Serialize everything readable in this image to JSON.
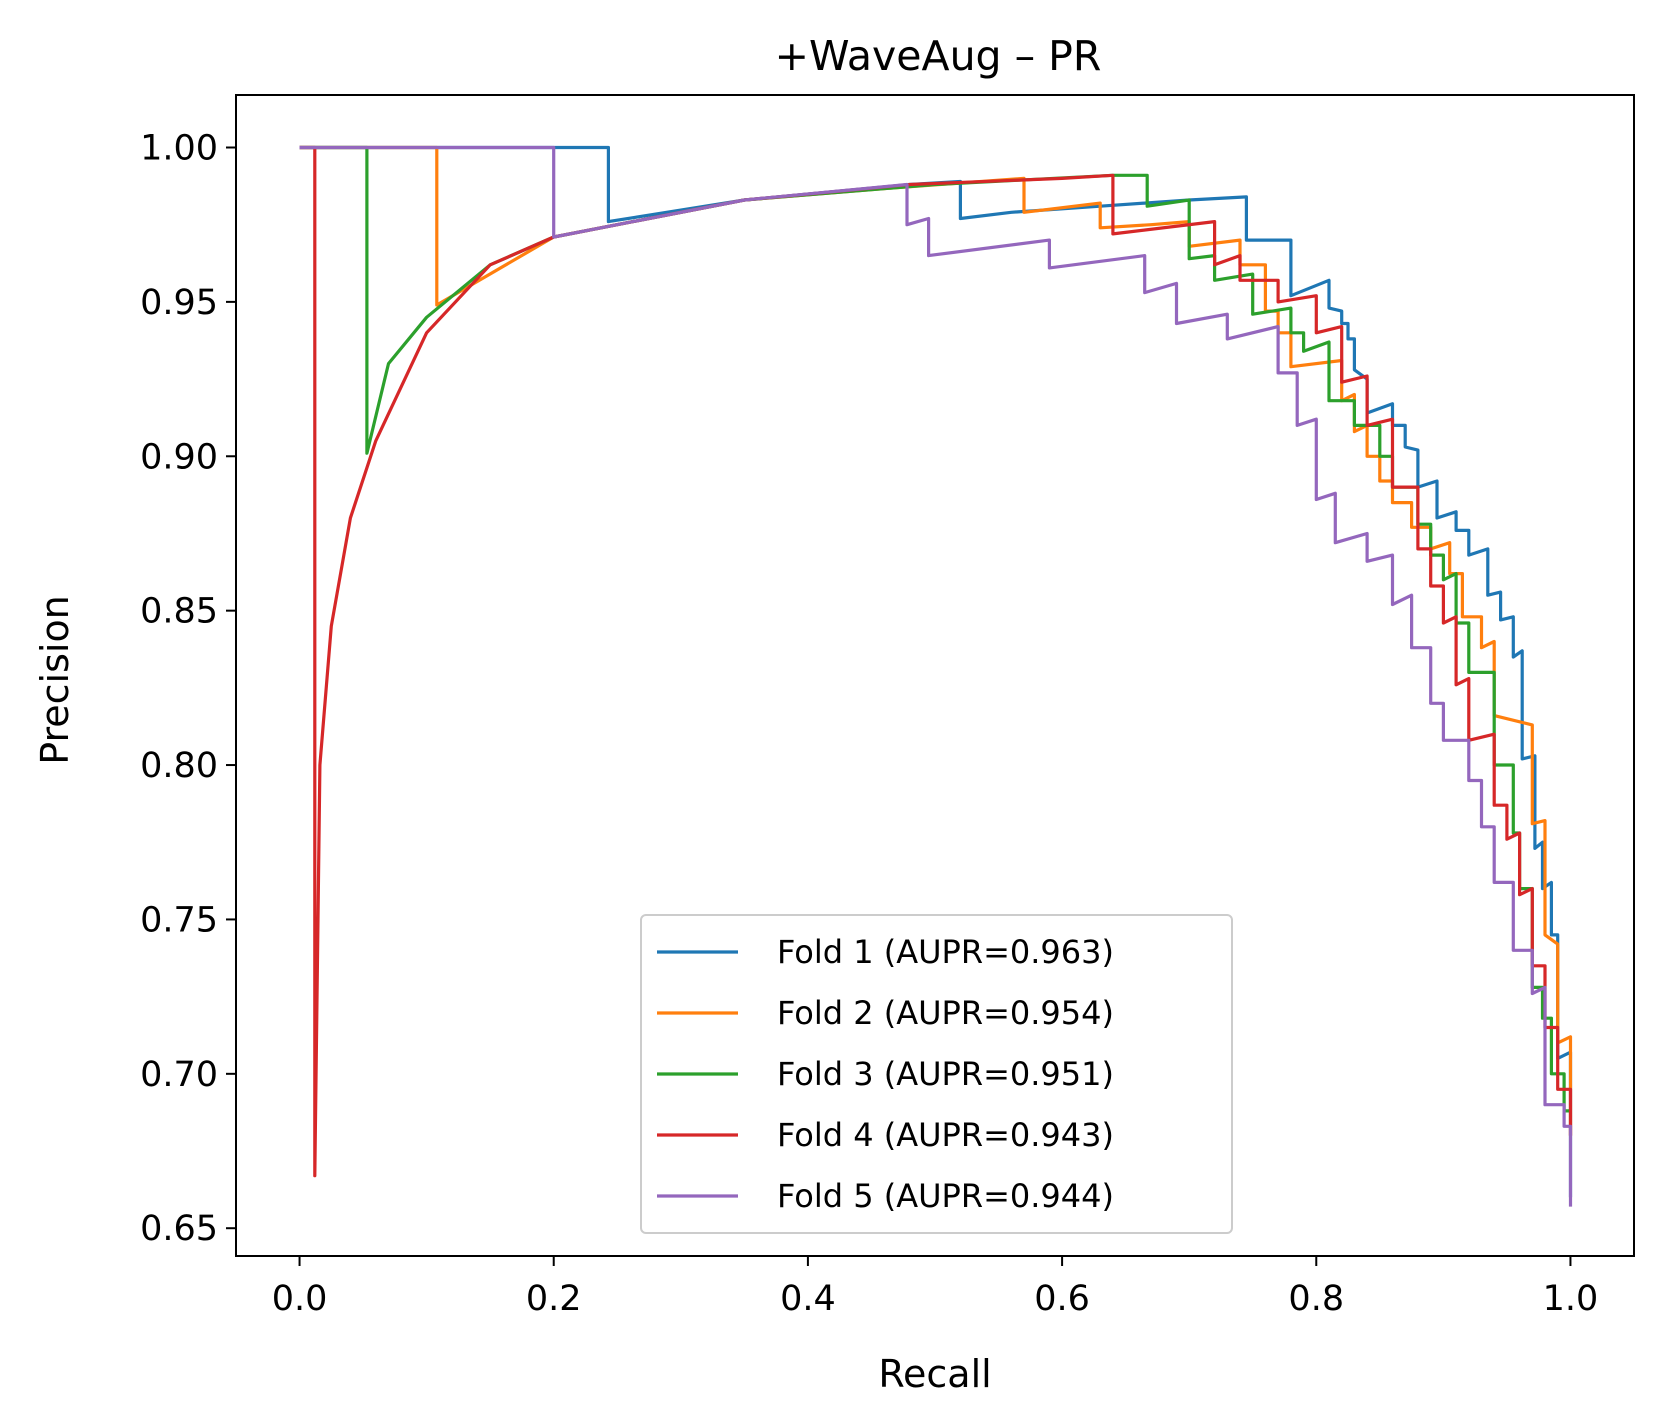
{
  "chart_data": {
    "type": "line",
    "title": "+WaveAug – PR",
    "xlabel": "Recall",
    "ylabel": "Precision",
    "xlim": [
      -0.05,
      1.05
    ],
    "ylim": [
      0.641,
      1.017
    ],
    "xticks": [
      0.0,
      0.2,
      0.4,
      0.6,
      0.8,
      1.0
    ],
    "xtick_labels": [
      "0.0",
      "0.2",
      "0.4",
      "0.6",
      "0.8",
      "1.0"
    ],
    "yticks": [
      0.65,
      0.7,
      0.75,
      0.8,
      0.85,
      0.9,
      0.95,
      1.0
    ],
    "ytick_labels": [
      "0.65",
      "0.70",
      "0.75",
      "0.80",
      "0.85",
      "0.90",
      "0.95",
      "1.00"
    ],
    "grid": false,
    "legend_position": "lower-center",
    "series": [
      {
        "name": "Fold 1 (AUPR=0.963)",
        "color": "#1f77b4",
        "points": [
          [
            0.0,
            1.0
          ],
          [
            0.243,
            1.0
          ],
          [
            0.243,
            0.976
          ],
          [
            0.35,
            0.983
          ],
          [
            0.48,
            0.988
          ],
          [
            0.52,
            0.989
          ],
          [
            0.52,
            0.977
          ],
          [
            0.56,
            0.979
          ],
          [
            0.63,
            0.981
          ],
          [
            0.7,
            0.983
          ],
          [
            0.745,
            0.984
          ],
          [
            0.745,
            0.97
          ],
          [
            0.78,
            0.97
          ],
          [
            0.78,
            0.952
          ],
          [
            0.81,
            0.957
          ],
          [
            0.81,
            0.948
          ],
          [
            0.82,
            0.947
          ],
          [
            0.82,
            0.943
          ],
          [
            0.825,
            0.943
          ],
          [
            0.825,
            0.938
          ],
          [
            0.83,
            0.938
          ],
          [
            0.83,
            0.928
          ],
          [
            0.84,
            0.925
          ],
          [
            0.84,
            0.914
          ],
          [
            0.86,
            0.917
          ],
          [
            0.86,
            0.91
          ],
          [
            0.87,
            0.91
          ],
          [
            0.87,
            0.903
          ],
          [
            0.88,
            0.902
          ],
          [
            0.88,
            0.89
          ],
          [
            0.895,
            0.892
          ],
          [
            0.895,
            0.88
          ],
          [
            0.91,
            0.882
          ],
          [
            0.91,
            0.876
          ],
          [
            0.92,
            0.876
          ],
          [
            0.92,
            0.868
          ],
          [
            0.935,
            0.87
          ],
          [
            0.935,
            0.855
          ],
          [
            0.945,
            0.856
          ],
          [
            0.945,
            0.847
          ],
          [
            0.955,
            0.848
          ],
          [
            0.955,
            0.835
          ],
          [
            0.962,
            0.837
          ],
          [
            0.962,
            0.802
          ],
          [
            0.972,
            0.803
          ],
          [
            0.972,
            0.773
          ],
          [
            0.978,
            0.775
          ],
          [
            0.978,
            0.76
          ],
          [
            0.985,
            0.762
          ],
          [
            0.985,
            0.745
          ],
          [
            0.99,
            0.745
          ],
          [
            0.99,
            0.705
          ],
          [
            1.0,
            0.707
          ],
          [
            1.0,
            0.66
          ]
        ]
      },
      {
        "name": "Fold 2 (AUPR=0.954)",
        "color": "#ff7f0e",
        "points": [
          [
            0.0,
            1.0
          ],
          [
            0.108,
            1.0
          ],
          [
            0.108,
            0.949
          ],
          [
            0.2,
            0.971
          ],
          [
            0.35,
            0.983
          ],
          [
            0.47,
            0.987
          ],
          [
            0.57,
            0.99
          ],
          [
            0.57,
            0.979
          ],
          [
            0.63,
            0.982
          ],
          [
            0.63,
            0.974
          ],
          [
            0.67,
            0.975
          ],
          [
            0.7,
            0.976
          ],
          [
            0.7,
            0.968
          ],
          [
            0.74,
            0.97
          ],
          [
            0.74,
            0.962
          ],
          [
            0.76,
            0.962
          ],
          [
            0.76,
            0.947
          ],
          [
            0.77,
            0.947
          ],
          [
            0.77,
            0.94
          ],
          [
            0.78,
            0.94
          ],
          [
            0.78,
            0.929
          ],
          [
            0.82,
            0.931
          ],
          [
            0.82,
            0.918
          ],
          [
            0.83,
            0.92
          ],
          [
            0.83,
            0.908
          ],
          [
            0.84,
            0.91
          ],
          [
            0.84,
            0.9
          ],
          [
            0.85,
            0.9
          ],
          [
            0.85,
            0.892
          ],
          [
            0.86,
            0.892
          ],
          [
            0.86,
            0.885
          ],
          [
            0.875,
            0.885
          ],
          [
            0.875,
            0.877
          ],
          [
            0.89,
            0.877
          ],
          [
            0.89,
            0.87
          ],
          [
            0.905,
            0.872
          ],
          [
            0.905,
            0.862
          ],
          [
            0.915,
            0.862
          ],
          [
            0.915,
            0.848
          ],
          [
            0.93,
            0.848
          ],
          [
            0.93,
            0.838
          ],
          [
            0.94,
            0.84
          ],
          [
            0.94,
            0.816
          ],
          [
            0.97,
            0.813
          ],
          [
            0.97,
            0.781
          ],
          [
            0.98,
            0.782
          ],
          [
            0.98,
            0.745
          ],
          [
            0.99,
            0.742
          ],
          [
            0.99,
            0.71
          ],
          [
            1.0,
            0.712
          ],
          [
            1.0,
            0.68
          ]
        ]
      },
      {
        "name": "Fold 3 (AUPR=0.951)",
        "color": "#2ca02c",
        "points": [
          [
            0.0,
            1.0
          ],
          [
            0.053,
            1.0
          ],
          [
            0.053,
            0.901
          ],
          [
            0.07,
            0.93
          ],
          [
            0.1,
            0.945
          ],
          [
            0.15,
            0.962
          ],
          [
            0.2,
            0.971
          ],
          [
            0.35,
            0.983
          ],
          [
            0.5,
            0.988
          ],
          [
            0.64,
            0.991
          ],
          [
            0.667,
            0.991
          ],
          [
            0.667,
            0.981
          ],
          [
            0.7,
            0.983
          ],
          [
            0.7,
            0.964
          ],
          [
            0.72,
            0.965
          ],
          [
            0.72,
            0.957
          ],
          [
            0.75,
            0.959
          ],
          [
            0.75,
            0.946
          ],
          [
            0.78,
            0.948
          ],
          [
            0.78,
            0.94
          ],
          [
            0.79,
            0.94
          ],
          [
            0.79,
            0.934
          ],
          [
            0.81,
            0.937
          ],
          [
            0.81,
            0.918
          ],
          [
            0.83,
            0.918
          ],
          [
            0.83,
            0.91
          ],
          [
            0.85,
            0.91
          ],
          [
            0.85,
            0.9
          ],
          [
            0.86,
            0.9
          ],
          [
            0.86,
            0.89
          ],
          [
            0.88,
            0.89
          ],
          [
            0.88,
            0.878
          ],
          [
            0.89,
            0.878
          ],
          [
            0.89,
            0.868
          ],
          [
            0.9,
            0.868
          ],
          [
            0.9,
            0.86
          ],
          [
            0.91,
            0.862
          ],
          [
            0.91,
            0.846
          ],
          [
            0.92,
            0.846
          ],
          [
            0.92,
            0.83
          ],
          [
            0.94,
            0.83
          ],
          [
            0.94,
            0.8
          ],
          [
            0.955,
            0.8
          ],
          [
            0.955,
            0.778
          ],
          [
            0.96,
            0.778
          ],
          [
            0.96,
            0.76
          ],
          [
            0.97,
            0.76
          ],
          [
            0.97,
            0.728
          ],
          [
            0.978,
            0.728
          ],
          [
            0.978,
            0.718
          ],
          [
            0.985,
            0.718
          ],
          [
            0.985,
            0.7
          ],
          [
            0.995,
            0.7
          ],
          [
            0.995,
            0.688
          ],
          [
            1.0,
            0.688
          ]
        ]
      },
      {
        "name": "Fold 4 (AUPR=0.943)",
        "color": "#d62728",
        "points": [
          [
            0.0,
            1.0
          ],
          [
            0.012,
            1.0
          ],
          [
            0.012,
            0.667
          ],
          [
            0.016,
            0.8
          ],
          [
            0.025,
            0.845
          ],
          [
            0.04,
            0.88
          ],
          [
            0.06,
            0.905
          ],
          [
            0.1,
            0.94
          ],
          [
            0.15,
            0.962
          ],
          [
            0.2,
            0.971
          ],
          [
            0.35,
            0.983
          ],
          [
            0.48,
            0.988
          ],
          [
            0.6,
            0.99
          ],
          [
            0.64,
            0.991
          ],
          [
            0.64,
            0.972
          ],
          [
            0.72,
            0.976
          ],
          [
            0.72,
            0.962
          ],
          [
            0.74,
            0.965
          ],
          [
            0.74,
            0.957
          ],
          [
            0.77,
            0.957
          ],
          [
            0.77,
            0.95
          ],
          [
            0.8,
            0.952
          ],
          [
            0.8,
            0.94
          ],
          [
            0.82,
            0.942
          ],
          [
            0.82,
            0.924
          ],
          [
            0.84,
            0.926
          ],
          [
            0.84,
            0.91
          ],
          [
            0.86,
            0.912
          ],
          [
            0.86,
            0.89
          ],
          [
            0.88,
            0.89
          ],
          [
            0.88,
            0.87
          ],
          [
            0.89,
            0.87
          ],
          [
            0.89,
            0.858
          ],
          [
            0.9,
            0.858
          ],
          [
            0.9,
            0.846
          ],
          [
            0.91,
            0.848
          ],
          [
            0.91,
            0.826
          ],
          [
            0.92,
            0.828
          ],
          [
            0.92,
            0.808
          ],
          [
            0.94,
            0.81
          ],
          [
            0.94,
            0.787
          ],
          [
            0.95,
            0.787
          ],
          [
            0.95,
            0.776
          ],
          [
            0.96,
            0.778
          ],
          [
            0.96,
            0.758
          ],
          [
            0.97,
            0.76
          ],
          [
            0.97,
            0.735
          ],
          [
            0.98,
            0.735
          ],
          [
            0.98,
            0.715
          ],
          [
            0.99,
            0.715
          ],
          [
            0.99,
            0.695
          ],
          [
            1.0,
            0.695
          ],
          [
            1.0,
            0.68
          ]
        ]
      },
      {
        "name": "Fold 5 (AUPR=0.944)",
        "color": "#9467bd",
        "points": [
          [
            0.0,
            1.0
          ],
          [
            0.2,
            1.0
          ],
          [
            0.2,
            0.971
          ],
          [
            0.35,
            0.983
          ],
          [
            0.478,
            0.988
          ],
          [
            0.478,
            0.975
          ],
          [
            0.495,
            0.977
          ],
          [
            0.495,
            0.965
          ],
          [
            0.59,
            0.97
          ],
          [
            0.59,
            0.961
          ],
          [
            0.665,
            0.965
          ],
          [
            0.665,
            0.953
          ],
          [
            0.69,
            0.956
          ],
          [
            0.69,
            0.943
          ],
          [
            0.73,
            0.946
          ],
          [
            0.73,
            0.938
          ],
          [
            0.77,
            0.942
          ],
          [
            0.77,
            0.927
          ],
          [
            0.785,
            0.927
          ],
          [
            0.785,
            0.91
          ],
          [
            0.8,
            0.912
          ],
          [
            0.8,
            0.886
          ],
          [
            0.815,
            0.888
          ],
          [
            0.815,
            0.872
          ],
          [
            0.84,
            0.875
          ],
          [
            0.84,
            0.866
          ],
          [
            0.86,
            0.868
          ],
          [
            0.86,
            0.852
          ],
          [
            0.875,
            0.855
          ],
          [
            0.875,
            0.838
          ],
          [
            0.89,
            0.838
          ],
          [
            0.89,
            0.82
          ],
          [
            0.9,
            0.82
          ],
          [
            0.9,
            0.808
          ],
          [
            0.92,
            0.808
          ],
          [
            0.92,
            0.795
          ],
          [
            0.93,
            0.795
          ],
          [
            0.93,
            0.78
          ],
          [
            0.94,
            0.78
          ],
          [
            0.94,
            0.762
          ],
          [
            0.955,
            0.762
          ],
          [
            0.955,
            0.74
          ],
          [
            0.97,
            0.74
          ],
          [
            0.97,
            0.726
          ],
          [
            0.98,
            0.728
          ],
          [
            0.98,
            0.69
          ],
          [
            0.995,
            0.69
          ],
          [
            0.995,
            0.683
          ],
          [
            1.0,
            0.683
          ],
          [
            1.0,
            0.657
          ]
        ]
      }
    ]
  }
}
